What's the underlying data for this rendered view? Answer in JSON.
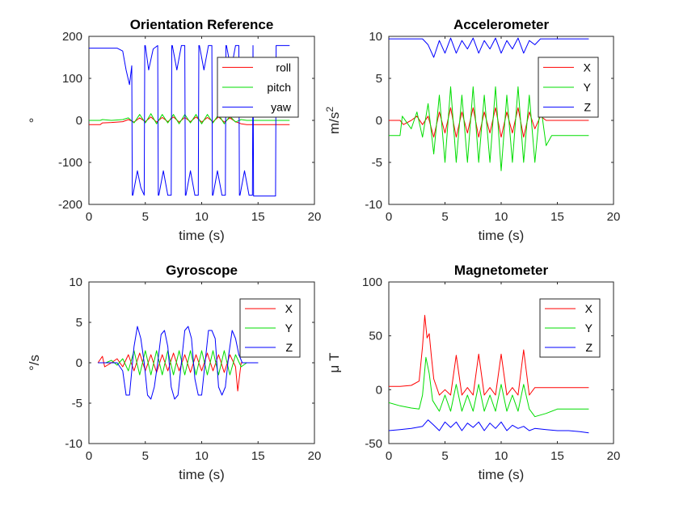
{
  "figure": {
    "background": "#ffffff"
  },
  "chart_data": [
    {
      "id": "orientation",
      "type": "line",
      "title": "Orientation Reference",
      "xlabel": "time (s)",
      "ylabel": "°",
      "xlim": [
        0,
        20
      ],
      "ylim": [
        -200,
        200
      ],
      "xticks": [
        "0",
        "5",
        "10",
        "15",
        "20"
      ],
      "yticks": [
        "-200",
        "-100",
        "0",
        "100",
        "200"
      ],
      "grid": false,
      "legend": "top-right",
      "series": [
        {
          "name": "roll",
          "color": "#ff0000",
          "x": [
            0,
            1,
            1.2,
            2,
            3,
            3.5,
            4,
            4.5,
            5,
            5.5,
            6,
            6.5,
            7,
            7.5,
            8,
            8.5,
            9,
            9.5,
            10,
            10.5,
            11,
            11.5,
            12,
            12.5,
            13,
            13.5,
            14,
            14.5,
            15,
            16,
            17,
            17.8
          ],
          "y": [
            -10,
            -10,
            -6,
            -5,
            -3,
            2,
            -4,
            6,
            -3,
            8,
            -4,
            7,
            -3,
            8,
            -4,
            7,
            -3,
            8,
            -4,
            7,
            -3,
            8,
            -4,
            6,
            -3,
            -8,
            -10,
            -10,
            -10,
            -10,
            -10,
            -10
          ]
        },
        {
          "name": "pitch",
          "color": "#00dd00",
          "x": [
            0,
            1,
            1.2,
            2,
            3,
            3.5,
            4,
            4.5,
            5,
            5.5,
            6,
            6.5,
            7,
            7.5,
            8,
            8.5,
            9,
            9.5,
            10,
            10.5,
            11,
            11.5,
            12,
            12.5,
            13,
            13.5,
            14,
            14.5,
            15,
            16,
            17,
            17.8
          ],
          "y": [
            0,
            0,
            2,
            0,
            2,
            6,
            -6,
            14,
            -6,
            16,
            -8,
            14,
            -6,
            14,
            -8,
            14,
            -6,
            14,
            -8,
            14,
            -6,
            14,
            -8,
            10,
            -4,
            2,
            0,
            0,
            0,
            0,
            0,
            0
          ]
        },
        {
          "name": "yaw",
          "color": "#0000ff",
          "x": [
            0,
            2.5,
            3,
            3.3,
            3.6,
            3.8,
            3.85,
            3.9,
            4.3,
            4.6,
            4.9,
            4.95,
            5.0,
            5.3,
            5.7,
            6.1,
            6.15,
            6.2,
            6.6,
            7.0,
            7.3,
            7.35,
            7.4,
            7.8,
            8.2,
            8.5,
            8.55,
            8.6,
            9.0,
            9.4,
            9.7,
            9.75,
            9.8,
            10.2,
            10.6,
            10.9,
            10.95,
            11.0,
            11.4,
            11.8,
            12.1,
            12.15,
            12.2,
            12.6,
            13.0,
            13.3,
            13.35,
            13.4,
            13.8,
            14.2,
            14.5,
            14.55,
            14.6,
            16.5,
            16.55,
            16.6,
            17.0,
            17.8
          ],
          "y": [
            172,
            172,
            165,
            120,
            85,
            130,
            -178,
            -178,
            -120,
            -160,
            -178,
            178,
            178,
            120,
            170,
            178,
            -178,
            -178,
            -120,
            -178,
            -178,
            178,
            178,
            120,
            178,
            178,
            -178,
            -178,
            -120,
            -178,
            -178,
            178,
            178,
            120,
            178,
            178,
            -178,
            -178,
            -120,
            -178,
            -178,
            178,
            178,
            120,
            178,
            178,
            -178,
            -178,
            -120,
            -178,
            -178,
            178,
            -180,
            -180,
            -180,
            178,
            178,
            178
          ]
        }
      ]
    },
    {
      "id": "accelerometer",
      "type": "line",
      "title": "Accelerometer",
      "xlabel": "time (s)",
      "ylabel": "m/s",
      "ylabel_sup": "2",
      "xlim": [
        0,
        20
      ],
      "ylim": [
        -10,
        10
      ],
      "xticks": [
        "0",
        "5",
        "10",
        "15",
        "20"
      ],
      "yticks": [
        "-10",
        "-5",
        "0",
        "5",
        "10"
      ],
      "grid": false,
      "legend": "top-right",
      "series": [
        {
          "name": "X",
          "color": "#ff0000",
          "x": [
            0,
            1,
            1.3,
            2,
            2.5,
            3,
            3.5,
            4,
            4.5,
            5,
            5.5,
            6,
            6.5,
            7,
            7.5,
            8,
            8.5,
            9,
            9.5,
            10,
            10.5,
            11,
            11.5,
            12,
            12.5,
            13,
            13.5,
            14,
            14.5,
            15,
            16,
            17,
            17.8
          ],
          "y": [
            0,
            0,
            -0.5,
            0,
            0.5,
            -0.5,
            0.5,
            -2,
            1,
            -1.5,
            1.5,
            -2,
            1,
            -1.5,
            1.5,
            -2,
            1,
            -1.5,
            1.5,
            -2,
            1,
            -1.5,
            1.5,
            -2,
            1,
            -1,
            0.5,
            0,
            0,
            0,
            0,
            0,
            0
          ]
        },
        {
          "name": "Y",
          "color": "#00dd00",
          "x": [
            0,
            1,
            1.2,
            2,
            2.5,
            3,
            3.5,
            4,
            4.5,
            5,
            5.5,
            6,
            6.5,
            7,
            7.5,
            8,
            8.5,
            9,
            9.5,
            10,
            10.5,
            11,
            11.5,
            12,
            12.5,
            13,
            13.5,
            14,
            14.5,
            15,
            16,
            17,
            17.8
          ],
          "y": [
            -1.8,
            -1.8,
            0.5,
            -1,
            1,
            -2,
            2,
            -4,
            3,
            -5,
            4,
            -5,
            3,
            -5,
            4,
            -5,
            3,
            -5,
            4,
            -6,
            3,
            -5,
            4,
            -5,
            3,
            -5,
            2,
            -3,
            -1.8,
            -1.8,
            -1.8,
            -1.8,
            -1.8
          ]
        },
        {
          "name": "Z",
          "color": "#0000ff",
          "x": [
            0,
            1,
            2,
            3,
            3.5,
            4,
            4.5,
            5,
            5.5,
            6,
            6.5,
            7,
            7.5,
            8,
            8.5,
            9,
            9.5,
            10,
            10.5,
            11,
            11.5,
            12,
            12.5,
            13,
            13.5,
            14,
            14.5,
            15,
            16,
            17,
            17.8
          ],
          "y": [
            9.7,
            9.7,
            9.7,
            9.7,
            9,
            7.5,
            9.5,
            8,
            9.8,
            8,
            9.5,
            8.5,
            9.8,
            8,
            9.5,
            8.5,
            9.8,
            8,
            9.5,
            8.5,
            9.8,
            8,
            9.5,
            9,
            9.7,
            9.7,
            9.7,
            9.7,
            9.7,
            9.7,
            9.7
          ]
        }
      ]
    },
    {
      "id": "gyroscope",
      "type": "line",
      "title": "Gyroscope",
      "xlabel": "time (s)",
      "ylabel": "°/s",
      "xlim": [
        0,
        20
      ],
      "ylim": [
        -10,
        10
      ],
      "xticks": [
        "0",
        "5",
        "10",
        "15",
        "20"
      ],
      "yticks": [
        "-10",
        "-5",
        "0",
        "5",
        "10"
      ],
      "grid": false,
      "legend": "top-right",
      "series": [
        {
          "name": "X",
          "color": "#ff0000",
          "x": [
            0.8,
            1.2,
            1.4,
            2,
            2.5,
            3,
            3.5,
            4,
            4.5,
            5,
            5.5,
            6,
            6.5,
            7,
            7.5,
            8,
            8.5,
            9,
            9.5,
            10,
            10.5,
            11,
            11.5,
            12,
            12.5,
            13,
            13.2,
            13.5,
            14,
            14.5,
            15
          ],
          "y": [
            0,
            0.8,
            -0.5,
            0,
            0.5,
            -0.5,
            1,
            -1,
            1.2,
            -1,
            1,
            -1.2,
            1,
            -1,
            1.2,
            -1,
            1,
            -1.2,
            1,
            -1,
            1.2,
            -1,
            1,
            -1.2,
            1,
            -0.5,
            -3.5,
            0,
            0,
            0,
            0
          ]
        },
        {
          "name": "Y",
          "color": "#00dd00",
          "x": [
            0.8,
            1.5,
            2,
            2.5,
            3,
            3.5,
            4,
            4.5,
            5,
            5.5,
            6,
            6.5,
            7,
            7.5,
            8,
            8.5,
            9,
            9.5,
            10,
            10.5,
            11,
            11.5,
            12,
            12.5,
            13,
            13.5,
            14,
            14.5,
            15
          ],
          "y": [
            0,
            0,
            0.3,
            -0.3,
            0.5,
            -1,
            1.5,
            -1.5,
            1.5,
            -1.5,
            1.5,
            -1.5,
            1.5,
            -1.5,
            1.5,
            -1.5,
            1.5,
            -1.5,
            1.5,
            -1.5,
            1.5,
            -1.5,
            1.5,
            -1.5,
            1,
            -0.5,
            0,
            0,
            0
          ]
        },
        {
          "name": "Z",
          "color": "#0000ff",
          "x": [
            0.8,
            1.5,
            2,
            2.5,
            3,
            3.3,
            3.6,
            4,
            4.3,
            4.6,
            4.9,
            5.2,
            5.5,
            5.8,
            6.1,
            6.4,
            6.7,
            7,
            7.3,
            7.6,
            7.9,
            8.2,
            8.5,
            8.8,
            9.1,
            9.4,
            9.7,
            10,
            10.3,
            10.6,
            10.9,
            11.2,
            11.5,
            11.8,
            12.1,
            12.4,
            12.7,
            13,
            13.3,
            13.6,
            14,
            14.5,
            15
          ],
          "y": [
            0,
            0,
            0,
            0,
            -1,
            -4,
            -4,
            2,
            4.5,
            3,
            0,
            -4,
            -4.5,
            -3,
            0,
            3.5,
            4,
            2,
            -3,
            -4.5,
            -4,
            0,
            4,
            4.5,
            3,
            -2,
            -4,
            -4,
            0,
            4,
            4,
            3,
            -3,
            -4,
            -3,
            1,
            4,
            3,
            1,
            0,
            0,
            0,
            0
          ]
        }
      ]
    },
    {
      "id": "magnetometer",
      "type": "line",
      "title": "Magnetometer",
      "xlabel": "time (s)",
      "ylabel": "μ T",
      "xlim": [
        0,
        20
      ],
      "ylim": [
        -50,
        100
      ],
      "xticks": [
        "0",
        "5",
        "10",
        "15",
        "20"
      ],
      "yticks": [
        "-50",
        "0",
        "50",
        "100"
      ],
      "grid": false,
      "legend": "top-right",
      "series": [
        {
          "name": "X",
          "color": "#ff0000",
          "x": [
            0,
            1,
            2,
            2.7,
            3,
            3.2,
            3.4,
            3.6,
            3.8,
            4,
            4.5,
            5,
            5.5,
            6,
            6.5,
            7,
            7.5,
            8,
            8.5,
            9,
            9.5,
            10,
            10.5,
            11,
            11.5,
            12,
            12.5,
            13,
            14,
            15,
            16,
            17,
            17.8
          ],
          "y": [
            3,
            3,
            4,
            8,
            40,
            69,
            48,
            52,
            30,
            10,
            -5,
            0,
            -5,
            32,
            -5,
            2,
            -5,
            33,
            -5,
            2,
            -5,
            33,
            -5,
            2,
            -5,
            37,
            -5,
            2,
            2,
            2,
            2,
            2,
            2
          ]
        },
        {
          "name": "Y",
          "color": "#00dd00",
          "x": [
            0,
            1,
            2,
            2.7,
            3,
            3.3,
            3.6,
            3.9,
            4.5,
            5,
            5.5,
            6,
            6.5,
            7,
            7.5,
            8,
            8.5,
            9,
            9.5,
            10,
            10.5,
            11,
            11.5,
            12,
            12.5,
            13,
            14,
            15,
            16,
            17,
            17.8
          ],
          "y": [
            -12,
            -15,
            -17,
            -18,
            -5,
            30,
            15,
            -10,
            -20,
            -5,
            -20,
            5,
            -20,
            -5,
            -20,
            5,
            -20,
            -5,
            -20,
            5,
            -20,
            -5,
            -20,
            5,
            -18,
            -25,
            -22,
            -18,
            -18,
            -18,
            -18
          ]
        },
        {
          "name": "Z",
          "color": "#0000ff",
          "x": [
            0,
            1,
            2,
            3,
            3.5,
            4,
            4.5,
            5,
            5.5,
            6,
            6.5,
            7,
            7.5,
            8,
            8.5,
            9,
            9.5,
            10,
            10.5,
            11,
            11.5,
            12,
            12.5,
            13,
            14,
            15,
            16,
            17,
            17.8
          ],
          "y": [
            -38,
            -37,
            -36,
            -34,
            -28,
            -33,
            -38,
            -30,
            -35,
            -30,
            -38,
            -31,
            -35,
            -30,
            -38,
            -31,
            -36,
            -30,
            -38,
            -33,
            -36,
            -34,
            -38,
            -36,
            -37,
            -38,
            -38,
            -39,
            -40
          ]
        }
      ]
    }
  ]
}
